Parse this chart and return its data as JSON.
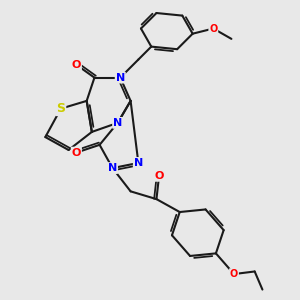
{
  "bg_color": "#e8e8e8",
  "bond_color": "#1a1a1a",
  "atom_colors": {
    "N": "#0000ff",
    "O": "#ff0000",
    "S": "#cccc00",
    "C": "#1a1a1a"
  },
  "bond_width": 1.5,
  "font_size_atoms": 8
}
